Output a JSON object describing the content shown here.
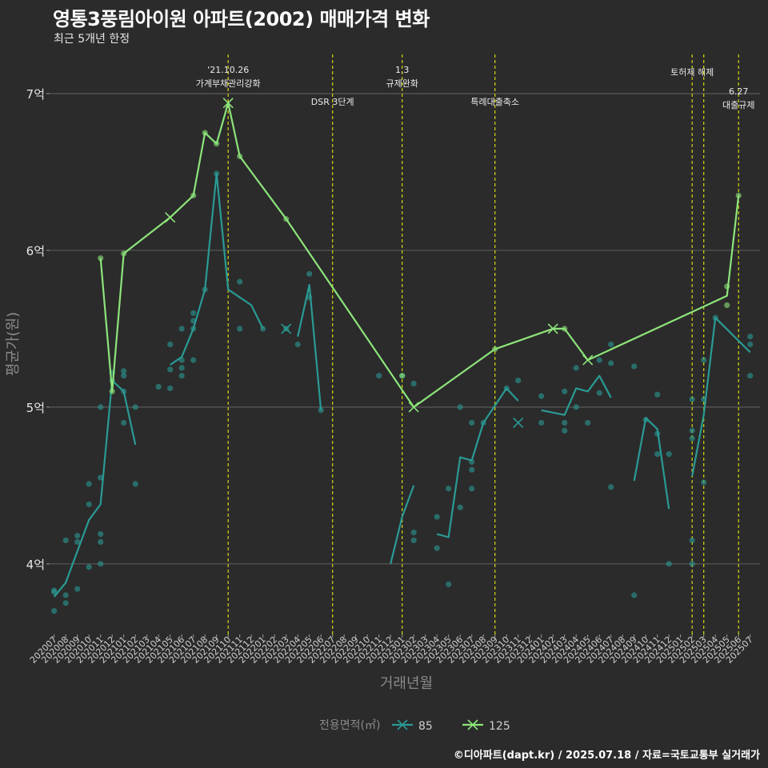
{
  "header": {
    "title": "영통3풍림아이원 아파트(2002) 매매가격 변화",
    "subtitle": "최근 5개년 한정"
  },
  "footer": {
    "credit": "©디아파트(dapt.kr) / 2025.07.18 / 자료=국토교통부 실거래가"
  },
  "colors": {
    "background": "#2b2b2b",
    "grid": "#5a5a5a",
    "event_line": "#d4d80e",
    "series_85": "#2a9a94",
    "series_125": "#8de47a"
  },
  "chart_data": {
    "type": "line",
    "title": "영통3풍림아이원 아파트(2002) 매매가격 변화",
    "subtitle": "최근 5개년 한정",
    "xlabel": "거래년월",
    "ylabel": "평균가(원)",
    "ylim": [
      3.55,
      7.25
    ],
    "grid": true,
    "y_ticks": [
      {
        "value": 4,
        "label": "4억"
      },
      {
        "value": 5,
        "label": "5억"
      },
      {
        "value": 6,
        "label": "6억"
      },
      {
        "value": 7,
        "label": "7억"
      }
    ],
    "categories": [
      "202007",
      "202008",
      "202009",
      "202010",
      "202011",
      "202012",
      "202101",
      "202102",
      "202103",
      "202104",
      "202105",
      "202106",
      "202107",
      "202108",
      "202109",
      "202110",
      "202111",
      "202112",
      "202201",
      "202202",
      "202203",
      "202204",
      "202205",
      "202206",
      "202207",
      "202208",
      "202209",
      "202210",
      "202211",
      "202212",
      "202301",
      "202302",
      "202303",
      "202304",
      "202305",
      "202306",
      "202307",
      "202308",
      "202309",
      "202310",
      "202311",
      "202312",
      "202401",
      "202402",
      "202403",
      "202404",
      "202405",
      "202406",
      "202407",
      "202408",
      "202409",
      "202410",
      "202411",
      "202412",
      "202501",
      "202502",
      "202503",
      "202504",
      "202505",
      "202506",
      "202507"
    ],
    "legend": {
      "title": "전용면적(㎡)",
      "position": "bottom",
      "items": [
        "85",
        "125"
      ]
    },
    "events": [
      {
        "month": "202110",
        "label": "'21.10.26\n가계부채관리강화",
        "level": 1
      },
      {
        "month": "202207",
        "label": "DSR 3단계",
        "level": 2
      },
      {
        "month": "202301",
        "label": "1.3\n규제완화",
        "level": 1
      },
      {
        "month": "202309",
        "label": "특례대출축소",
        "level": 2
      },
      {
        "month": "202502",
        "label": "토허제 해제",
        "level": 1
      },
      {
        "month": "202503",
        "label": "",
        "level": 1
      },
      {
        "month": "202506",
        "label": "6.27\n대출규제",
        "level": 3
      }
    ],
    "series": [
      {
        "name": "85",
        "line_segments": [
          [
            [
              "202007",
              3.79
            ],
            [
              "202008",
              3.88
            ],
            [
              "202009",
              4.08
            ],
            [
              "202010",
              4.28
            ],
            [
              "202011",
              4.38
            ],
            [
              "202012",
              5.17
            ],
            [
              "202101",
              5.1
            ],
            [
              "202102",
              4.76
            ]
          ],
          [
            [
              "202105",
              5.27
            ],
            [
              "202106",
              5.32
            ],
            [
              "202107",
              5.5
            ],
            [
              "202108",
              5.75
            ],
            [
              "202109",
              6.49
            ],
            [
              "202110",
              5.75
            ],
            [
              "202111",
              5.7
            ],
            [
              "202112",
              5.65
            ],
            [
              "202201",
              5.5
            ]
          ],
          [
            [
              "202204",
              5.45
            ],
            [
              "202205",
              5.78
            ],
            [
              "202206",
              4.98
            ]
          ],
          [
            [
              "202212",
              4.0
            ],
            [
              "202301",
              4.3
            ],
            [
              "202302",
              4.5
            ]
          ],
          [
            [
              "202304",
              4.19
            ],
            [
              "202305",
              4.17
            ],
            [
              "202306",
              4.68
            ],
            [
              "202307",
              4.66
            ],
            [
              "202308",
              4.9
            ],
            [
              "202310",
              5.12
            ],
            [
              "202311",
              5.04
            ]
          ],
          [
            [
              "202401",
              4.98
            ],
            [
              "202403",
              4.95
            ],
            [
              "202404",
              5.12
            ],
            [
              "202405",
              5.1
            ],
            [
              "202406",
              5.2
            ],
            [
              "202407",
              5.06
            ]
          ],
          [
            [
              "202409",
              4.53
            ],
            [
              "202410",
              4.93
            ],
            [
              "202411",
              4.86
            ],
            [
              "202412",
              4.35
            ]
          ],
          [
            [
              "202502",
              4.56
            ],
            [
              "202503",
              4.95
            ],
            [
              "202504",
              5.57
            ],
            [
              "202507",
              5.35
            ]
          ]
        ],
        "points": [
          [
            "202007",
            3.7
          ],
          [
            "202007",
            3.82
          ],
          [
            "202007",
            3.83
          ],
          [
            "202008",
            3.75
          ],
          [
            "202008",
            3.8
          ],
          [
            "202008",
            4.15
          ],
          [
            "202009",
            3.84
          ],
          [
            "202009",
            4.14
          ],
          [
            "202009",
            4.18
          ],
          [
            "202010",
            3.98
          ],
          [
            "202010",
            4.38
          ],
          [
            "202010",
            4.51
          ],
          [
            "202011",
            4.0
          ],
          [
            "202011",
            4.14
          ],
          [
            "202011",
            4.19
          ],
          [
            "202011",
            4.55
          ],
          [
            "202011",
            5.0
          ],
          [
            "202012",
            5.17
          ],
          [
            "202012",
            5.22
          ],
          [
            "202101",
            4.9
          ],
          [
            "202101",
            5.1
          ],
          [
            "202101",
            5.2
          ],
          [
            "202101",
            5.23
          ],
          [
            "202102",
            4.51
          ],
          [
            "202102",
            5.0
          ],
          [
            "202104",
            5.13
          ],
          [
            "202105",
            5.12
          ],
          [
            "202105",
            5.24
          ],
          [
            "202105",
            5.4
          ],
          [
            "202106",
            5.2
          ],
          [
            "202106",
            5.25
          ],
          [
            "202106",
            5.3
          ],
          [
            "202106",
            5.5
          ],
          [
            "202107",
            5.3
          ],
          [
            "202107",
            5.5
          ],
          [
            "202107",
            5.55
          ],
          [
            "202107",
            5.6
          ],
          [
            "202108",
            5.75
          ],
          [
            "202109",
            6.49
          ],
          [
            "202111",
            5.8
          ],
          [
            "202111",
            5.5
          ],
          [
            "202201",
            5.5
          ],
          [
            "202203",
            5.5
          ],
          [
            "202204",
            5.4
          ],
          [
            "202205",
            5.85
          ],
          [
            "202205",
            5.7
          ],
          [
            "202206",
            4.98
          ],
          [
            "202211",
            5.2
          ],
          [
            "202301",
            5.2
          ],
          [
            "202302",
            4.15
          ],
          [
            "202302",
            4.2
          ],
          [
            "202302",
            5.15
          ],
          [
            "202304",
            4.1
          ],
          [
            "202304",
            4.3
          ],
          [
            "202305",
            3.87
          ],
          [
            "202305",
            4.48
          ],
          [
            "202306",
            4.36
          ],
          [
            "202306",
            5.0
          ],
          [
            "202307",
            4.48
          ],
          [
            "202307",
            4.6
          ],
          [
            "202307",
            4.65
          ],
          [
            "202307",
            4.9
          ],
          [
            "202308",
            4.9
          ],
          [
            "202310",
            5.12
          ],
          [
            "202311",
            5.17
          ],
          [
            "202401",
            4.9
          ],
          [
            "202401",
            5.07
          ],
          [
            "202403",
            4.85
          ],
          [
            "202403",
            4.9
          ],
          [
            "202403",
            5.1
          ],
          [
            "202404",
            5.0
          ],
          [
            "202404",
            5.25
          ],
          [
            "202405",
            4.9
          ],
          [
            "202406",
            5.09
          ],
          [
            "202406",
            5.3
          ],
          [
            "202407",
            4.49
          ],
          [
            "202407",
            5.28
          ],
          [
            "202407",
            5.4
          ],
          [
            "202409",
            3.8
          ],
          [
            "202409",
            5.26
          ],
          [
            "202410",
            4.92
          ],
          [
            "202411",
            4.83
          ],
          [
            "202411",
            4.7
          ],
          [
            "202411",
            5.08
          ],
          [
            "202412",
            4.0
          ],
          [
            "202412",
            4.7
          ],
          [
            "202502",
            4.0
          ],
          [
            "202502",
            4.15
          ],
          [
            "202502",
            4.8
          ],
          [
            "202502",
            4.85
          ],
          [
            "202502",
            5.05
          ],
          [
            "202503",
            4.52
          ],
          [
            "202503",
            5.05
          ],
          [
            "202503",
            5.3
          ],
          [
            "202504",
            5.57
          ],
          [
            "202507",
            5.2
          ],
          [
            "202507",
            5.4
          ],
          [
            "202507",
            5.45
          ]
        ],
        "cross_markers": [
          [
            "202203",
            5.5
          ],
          [
            "202311",
            4.9
          ]
        ]
      },
      {
        "name": "125",
        "line_segments": [
          [
            [
              "202011",
              5.95
            ],
            [
              "202012",
              5.1
            ],
            [
              "202101",
              5.98
            ],
            [
              "202105",
              6.21
            ],
            [
              "202107",
              6.35
            ],
            [
              "202108",
              6.75
            ],
            [
              "202109",
              6.68
            ],
            [
              "202110",
              6.94
            ],
            [
              "202111",
              6.6
            ],
            [
              "202203",
              6.2
            ],
            [
              "202302",
              5.0
            ],
            [
              "202309",
              5.37
            ],
            [
              "202402",
              5.5
            ],
            [
              "202403",
              5.5
            ],
            [
              "202405",
              5.3
            ],
            [
              "202505",
              5.71
            ],
            [
              "202506",
              6.35
            ]
          ]
        ],
        "points": [
          [
            "202011",
            5.95
          ],
          [
            "202012",
            5.1
          ],
          [
            "202101",
            5.98
          ],
          [
            "202107",
            6.35
          ],
          [
            "202108",
            6.75
          ],
          [
            "202109",
            6.68
          ],
          [
            "202111",
            6.6
          ],
          [
            "202203",
            6.2
          ],
          [
            "202301",
            5.2
          ],
          [
            "202309",
            5.37
          ],
          [
            "202403",
            5.5
          ],
          [
            "202505",
            5.77
          ],
          [
            "202505",
            5.65
          ],
          [
            "202506",
            6.35
          ]
        ],
        "cross_markers": [
          [
            "202105",
            6.21
          ],
          [
            "202110",
            6.94
          ],
          [
            "202302",
            5.0
          ],
          [
            "202402",
            5.5
          ],
          [
            "202405",
            5.3
          ]
        ]
      }
    ]
  }
}
